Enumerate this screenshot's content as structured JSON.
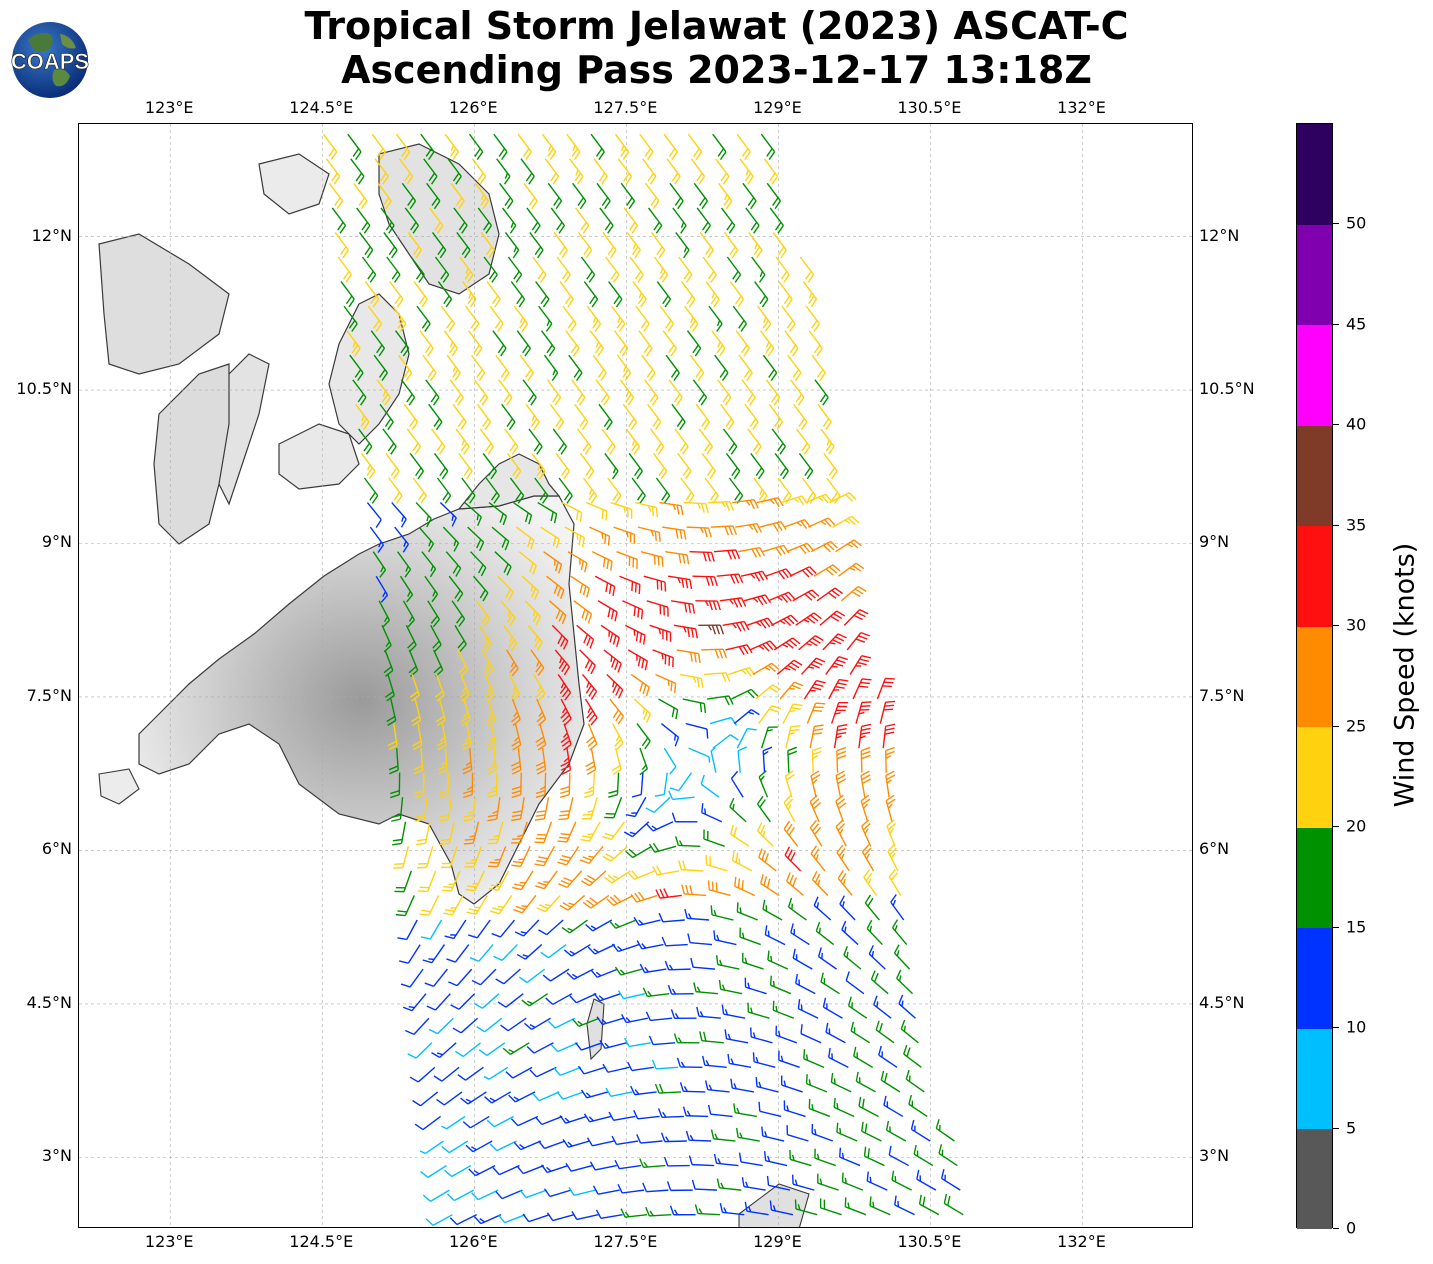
{
  "title": {
    "line1": "Tropical Storm Jelawat (2023) ASCAT-C",
    "line2": "Ascending Pass 2023-12-17 13:18Z"
  },
  "logo": {
    "text": "COAPS"
  },
  "map": {
    "lon_range": [
      122.1,
      133.1
    ],
    "lat_range": [
      2.3,
      13.1
    ],
    "lon_ticks": [
      {
        "value": 123,
        "label": "123°E"
      },
      {
        "value": 124.5,
        "label": "124.5°E"
      },
      {
        "value": 126,
        "label": "126°E"
      },
      {
        "value": 127.5,
        "label": "127.5°E"
      },
      {
        "value": 129,
        "label": "129°E"
      },
      {
        "value": 130.5,
        "label": "130.5°E"
      },
      {
        "value": 132,
        "label": "132°E"
      }
    ],
    "lat_ticks": [
      {
        "value": 12,
        "label": "12°N"
      },
      {
        "value": 10.5,
        "label": "10.5°N"
      },
      {
        "value": 9,
        "label": "9°N"
      },
      {
        "value": 7.5,
        "label": "7.5°N"
      },
      {
        "value": 6,
        "label": "6°N"
      },
      {
        "value": 4.5,
        "label": "4.5°N"
      },
      {
        "value": 3,
        "label": "3°N"
      }
    ],
    "gridlines": true,
    "storm_center": {
      "lon": 128.2,
      "lat": 6.8
    }
  },
  "colorbar": {
    "label": "Wind Speed (knots)",
    "ticks": [
      "0",
      "5",
      "10",
      "15",
      "20",
      "25",
      "30",
      "35",
      "40",
      "45",
      "50"
    ],
    "bins": [
      {
        "min": 0,
        "max": 5,
        "color": "#585858"
      },
      {
        "min": 5,
        "max": 10,
        "color": "#00bfff"
      },
      {
        "min": 10,
        "max": 15,
        "color": "#0033ff"
      },
      {
        "min": 15,
        "max": 20,
        "color": "#009100"
      },
      {
        "min": 20,
        "max": 25,
        "color": "#ffd20f"
      },
      {
        "min": 25,
        "max": 30,
        "color": "#ff8c00"
      },
      {
        "min": 30,
        "max": 35,
        "color": "#ff1010"
      },
      {
        "min": 35,
        "max": 40,
        "color": "#7f3a28"
      },
      {
        "min": 40,
        "max": 45,
        "color": "#ff00ff"
      },
      {
        "min": 45,
        "max": 50,
        "color": "#8000b0"
      },
      {
        "min": 50,
        "max": 55,
        "color": "#2e0060"
      }
    ]
  }
}
